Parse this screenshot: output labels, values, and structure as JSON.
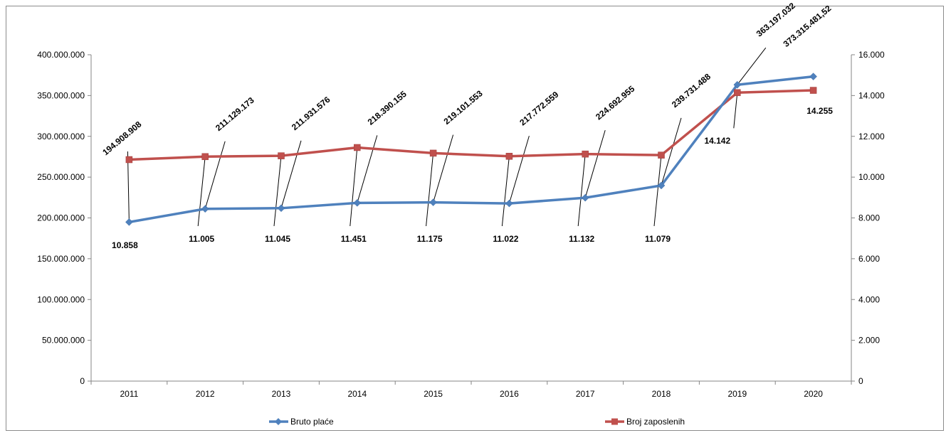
{
  "chart_data": {
    "type": "line",
    "categories": [
      "2011",
      "2012",
      "2013",
      "2014",
      "2015",
      "2016",
      "2017",
      "2018",
      "2019",
      "2020"
    ],
    "series": [
      {
        "name": "Bruto plaće",
        "axis": "left",
        "color": "#4f81bd",
        "marker": "diamond",
        "values": [
          194908908,
          211129173,
          211931576,
          218390155,
          219101553,
          217772559,
          224692955,
          239731488,
          363197032,
          373315481.52
        ],
        "labels": [
          "194.908.908",
          "211.129.173",
          "211.931.576",
          "218.390.155",
          "219.101.553",
          "217.772.559",
          "224.692.955",
          "239.731.488",
          "363.197.032",
          "373.315.481,52"
        ]
      },
      {
        "name": "Broj zaposlenih",
        "axis": "right",
        "color": "#c0504d",
        "marker": "square",
        "values": [
          10858,
          11005,
          11045,
          11451,
          11175,
          11022,
          11132,
          11079,
          14142,
          14255
        ],
        "labels": [
          "10.858",
          "11.005",
          "11.045",
          "11.451",
          "11.175",
          "11.022",
          "11.132",
          "11.079",
          "14.142",
          "14.255"
        ]
      }
    ],
    "y_left": {
      "range": [
        0,
        400000000
      ],
      "ticks": [
        0,
        50000000,
        100000000,
        150000000,
        200000000,
        250000000,
        300000000,
        350000000,
        400000000
      ],
      "tick_labels": [
        "0",
        "50.000.000",
        "100.000.000",
        "150.000.000",
        "200.000.000",
        "250.000.000",
        "300.000.000",
        "350.000.000",
        "400.000.000"
      ]
    },
    "y_right": {
      "range": [
        0,
        16000
      ],
      "ticks": [
        0,
        2000,
        4000,
        6000,
        8000,
        10000,
        12000,
        14000,
        16000
      ],
      "tick_labels": [
        "0",
        "2.000",
        "4.000",
        "6.000",
        "8.000",
        "10.000",
        "12.000",
        "14.000",
        "16.000"
      ]
    },
    "grid": false,
    "legend_position": "bottom",
    "title": "",
    "xlabel": "",
    "ylabel": ""
  }
}
